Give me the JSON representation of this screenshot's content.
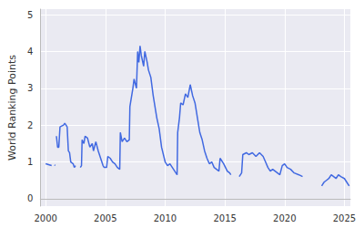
{
  "chart_data": {
    "type": "line",
    "y_label": "World Ranking Points",
    "color": "#4169e1",
    "grid": true,
    "xlim": [
      1999.55,
      2025.5
    ],
    "xticks": [
      2000,
      2005,
      2010,
      2015,
      2020,
      2025
    ],
    "ylim": [
      -0.2,
      5.15
    ],
    "yticks": [
      0,
      1,
      2,
      3,
      4,
      5
    ],
    "x": [
      2000.0,
      2000.3,
      2000.5,
      2000.65,
      2000.75,
      2000.8,
      2000.85,
      2000.9,
      2001.0,
      2001.1,
      2001.2,
      2001.5,
      2001.6,
      2001.8,
      2001.9,
      2002.0,
      2002.1,
      2002.3,
      2002.4,
      2002.5,
      2002.7,
      2002.9,
      2003.0,
      2003.05,
      2003.2,
      2003.3,
      2003.5,
      2003.7,
      2003.9,
      2004.0,
      2004.2,
      2004.4,
      2004.6,
      2004.8,
      2004.9,
      2005.1,
      2005.2,
      2005.4,
      2005.6,
      2005.8,
      2006.0,
      2006.2,
      2006.25,
      2006.4,
      2006.6,
      2006.8,
      2007.0,
      2007.05,
      2007.3,
      2007.4,
      2007.6,
      2007.7,
      2007.8,
      2007.9,
      2008.0,
      2008.2,
      2008.3,
      2008.5,
      2008.6,
      2008.8,
      2009.0,
      2009.2,
      2009.3,
      2009.5,
      2009.7,
      2010.0,
      2010.2,
      2010.4,
      2010.6,
      2010.8,
      2011.0,
      2011.05,
      2011.2,
      2011.3,
      2011.5,
      2011.7,
      2011.9,
      2012.1,
      2012.3,
      2012.5,
      2012.7,
      2012.9,
      2013.1,
      2013.3,
      2013.5,
      2013.7,
      2013.9,
      2014.1,
      2014.3,
      2014.5,
      2014.6,
      2014.9,
      2015.2,
      2015.4,
      2015.5,
      2015.9,
      2016.2,
      2016.4,
      2016.5,
      2016.8,
      2017.0,
      2017.3,
      2017.6,
      2017.9,
      2018.2,
      2018.4,
      2018.6,
      2018.8,
      2019.0,
      2019.2,
      2019.4,
      2019.6,
      2019.8,
      2020.0,
      2020.2,
      2020.5,
      2020.8,
      2021.2,
      2021.5,
      2022.3,
      2023.1,
      2023.3,
      2023.5,
      2023.7,
      2023.9,
      2024.1,
      2024.3,
      2024.5,
      2024.7,
      2025.0,
      2025.2,
      2025.4
    ],
    "values": [
      0.95,
      0.92,
      0.9,
      null,
      0.92,
      0.9,
      null,
      1.7,
      1.4,
      1.4,
      1.95,
      2.0,
      2.05,
      1.95,
      1.3,
      1.25,
      1.0,
      0.95,
      0.85,
      0.9,
      null,
      0.85,
      0.9,
      1.6,
      1.5,
      1.7,
      1.65,
      1.4,
      1.5,
      1.3,
      1.55,
      1.3,
      1.1,
      0.9,
      0.85,
      0.85,
      1.15,
      1.1,
      1.0,
      0.95,
      0.85,
      0.8,
      1.8,
      1.55,
      1.65,
      1.55,
      1.6,
      2.5,
      3.0,
      3.25,
      3.0,
      4.0,
      3.7,
      4.15,
      3.9,
      3.6,
      4.0,
      3.7,
      3.5,
      3.3,
      2.8,
      2.4,
      2.2,
      1.9,
      1.4,
      1.0,
      0.9,
      0.95,
      0.85,
      0.75,
      0.65,
      1.8,
      2.2,
      2.6,
      2.55,
      2.85,
      2.75,
      3.1,
      2.8,
      2.6,
      2.2,
      1.8,
      1.6,
      1.3,
      1.1,
      0.95,
      1.0,
      0.85,
      0.8,
      0.75,
      1.1,
      0.95,
      0.75,
      0.7,
      0.65,
      null,
      0.6,
      0.7,
      1.2,
      1.25,
      1.2,
      1.25,
      1.15,
      1.25,
      1.15,
      1.0,
      0.85,
      0.75,
      0.8,
      0.75,
      0.7,
      0.65,
      0.9,
      0.95,
      0.85,
      0.8,
      0.7,
      0.65,
      0.6,
      null,
      0.35,
      0.45,
      0.5,
      0.55,
      0.65,
      0.6,
      0.55,
      0.65,
      0.6,
      0.55,
      0.45,
      0.35
    ]
  }
}
